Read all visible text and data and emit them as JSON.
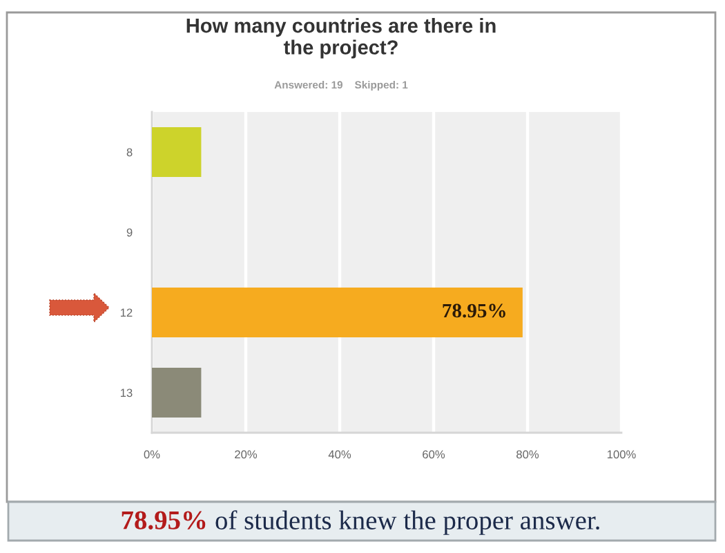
{
  "chart_data": {
    "type": "bar",
    "orientation": "horizontal",
    "title": "How many countries are there in the project?",
    "subtitle": "Answered: 19    Skipped: 1",
    "categories": [
      "8",
      "9",
      "12",
      "13"
    ],
    "values": [
      10.5,
      0,
      78.95,
      10.5
    ],
    "colors": [
      "#cdd32b",
      null,
      "#f6ab1f",
      "#8b8a78"
    ],
    "value_labels": [
      null,
      null,
      "78.95%",
      null
    ],
    "xlim": [
      0,
      100
    ],
    "xticks": [
      {
        "value": 0,
        "label": "0%"
      },
      {
        "value": 20,
        "label": "20%"
      },
      {
        "value": 40,
        "label": "40%"
      },
      {
        "value": 60,
        "label": "60%"
      },
      {
        "value": 80,
        "label": "80%"
      },
      {
        "value": 100,
        "label": "100%"
      }
    ],
    "grid": "x",
    "annotations": [
      "78.95% of students knew the proper answer."
    ]
  }
}
